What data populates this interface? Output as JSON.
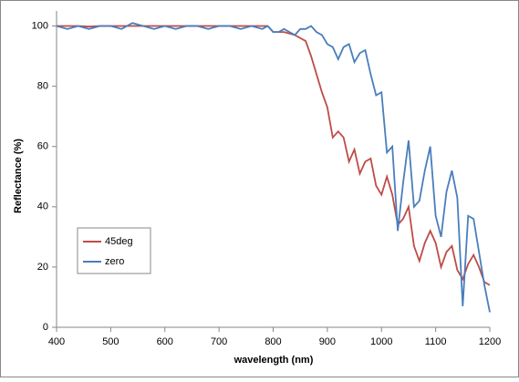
{
  "chart_data": {
    "type": "line",
    "xlabel": "wavelength (nm)",
    "ylabel": "Reflectance (%)",
    "x": [
      400,
      420,
      440,
      460,
      480,
      500,
      520,
      540,
      560,
      580,
      600,
      620,
      640,
      660,
      680,
      700,
      720,
      740,
      760,
      780,
      790,
      800,
      810,
      820,
      830,
      840,
      850,
      860,
      870,
      880,
      890,
      900,
      910,
      920,
      930,
      940,
      950,
      960,
      970,
      980,
      990,
      1000,
      1010,
      1020,
      1030,
      1040,
      1050,
      1060,
      1070,
      1080,
      1090,
      1100,
      1110,
      1120,
      1130,
      1140,
      1150,
      1160,
      1170,
      1180,
      1190,
      1200
    ],
    "series": [
      {
        "name": "45deg",
        "color": "#be4b48",
        "values": [
          100,
          100,
          100,
          99.8,
          100,
          100,
          100,
          100,
          100,
          100,
          100,
          100,
          100,
          100,
          100,
          100,
          100,
          100,
          100,
          100,
          100,
          98,
          98,
          98,
          97.5,
          97,
          96,
          95,
          90,
          84,
          78,
          73,
          63,
          65,
          63,
          55,
          59,
          51,
          55,
          56,
          47,
          44,
          50,
          44,
          34,
          36,
          40,
          27,
          22,
          28,
          32,
          28,
          20,
          25,
          27,
          19,
          16,
          21,
          24,
          20,
          15,
          14
        ]
      },
      {
        "name": "zero",
        "color": "#4a7ebb",
        "values": [
          100,
          99,
          100,
          99,
          100,
          100,
          99,
          101,
          100,
          99,
          100,
          99,
          100,
          100,
          99,
          100,
          100,
          99,
          100,
          99,
          100,
          98,
          98,
          99,
          98,
          97,
          99,
          99,
          100,
          98,
          97,
          94,
          93,
          89,
          93,
          94,
          88,
          91,
          92,
          84,
          77,
          78,
          58,
          60,
          32,
          48,
          62,
          40,
          42,
          52,
          60,
          37,
          30,
          45,
          52,
          43,
          7,
          37,
          36,
          25,
          14,
          5
        ]
      }
    ],
    "xlim": [
      400,
      1200
    ],
    "xticks": [
      400,
      500,
      600,
      700,
      800,
      900,
      1000,
      1100,
      1200
    ],
    "ylim": [
      0,
      105
    ],
    "yticks": [
      0,
      20,
      40,
      60,
      80,
      100
    ],
    "legend": "lower-left"
  }
}
